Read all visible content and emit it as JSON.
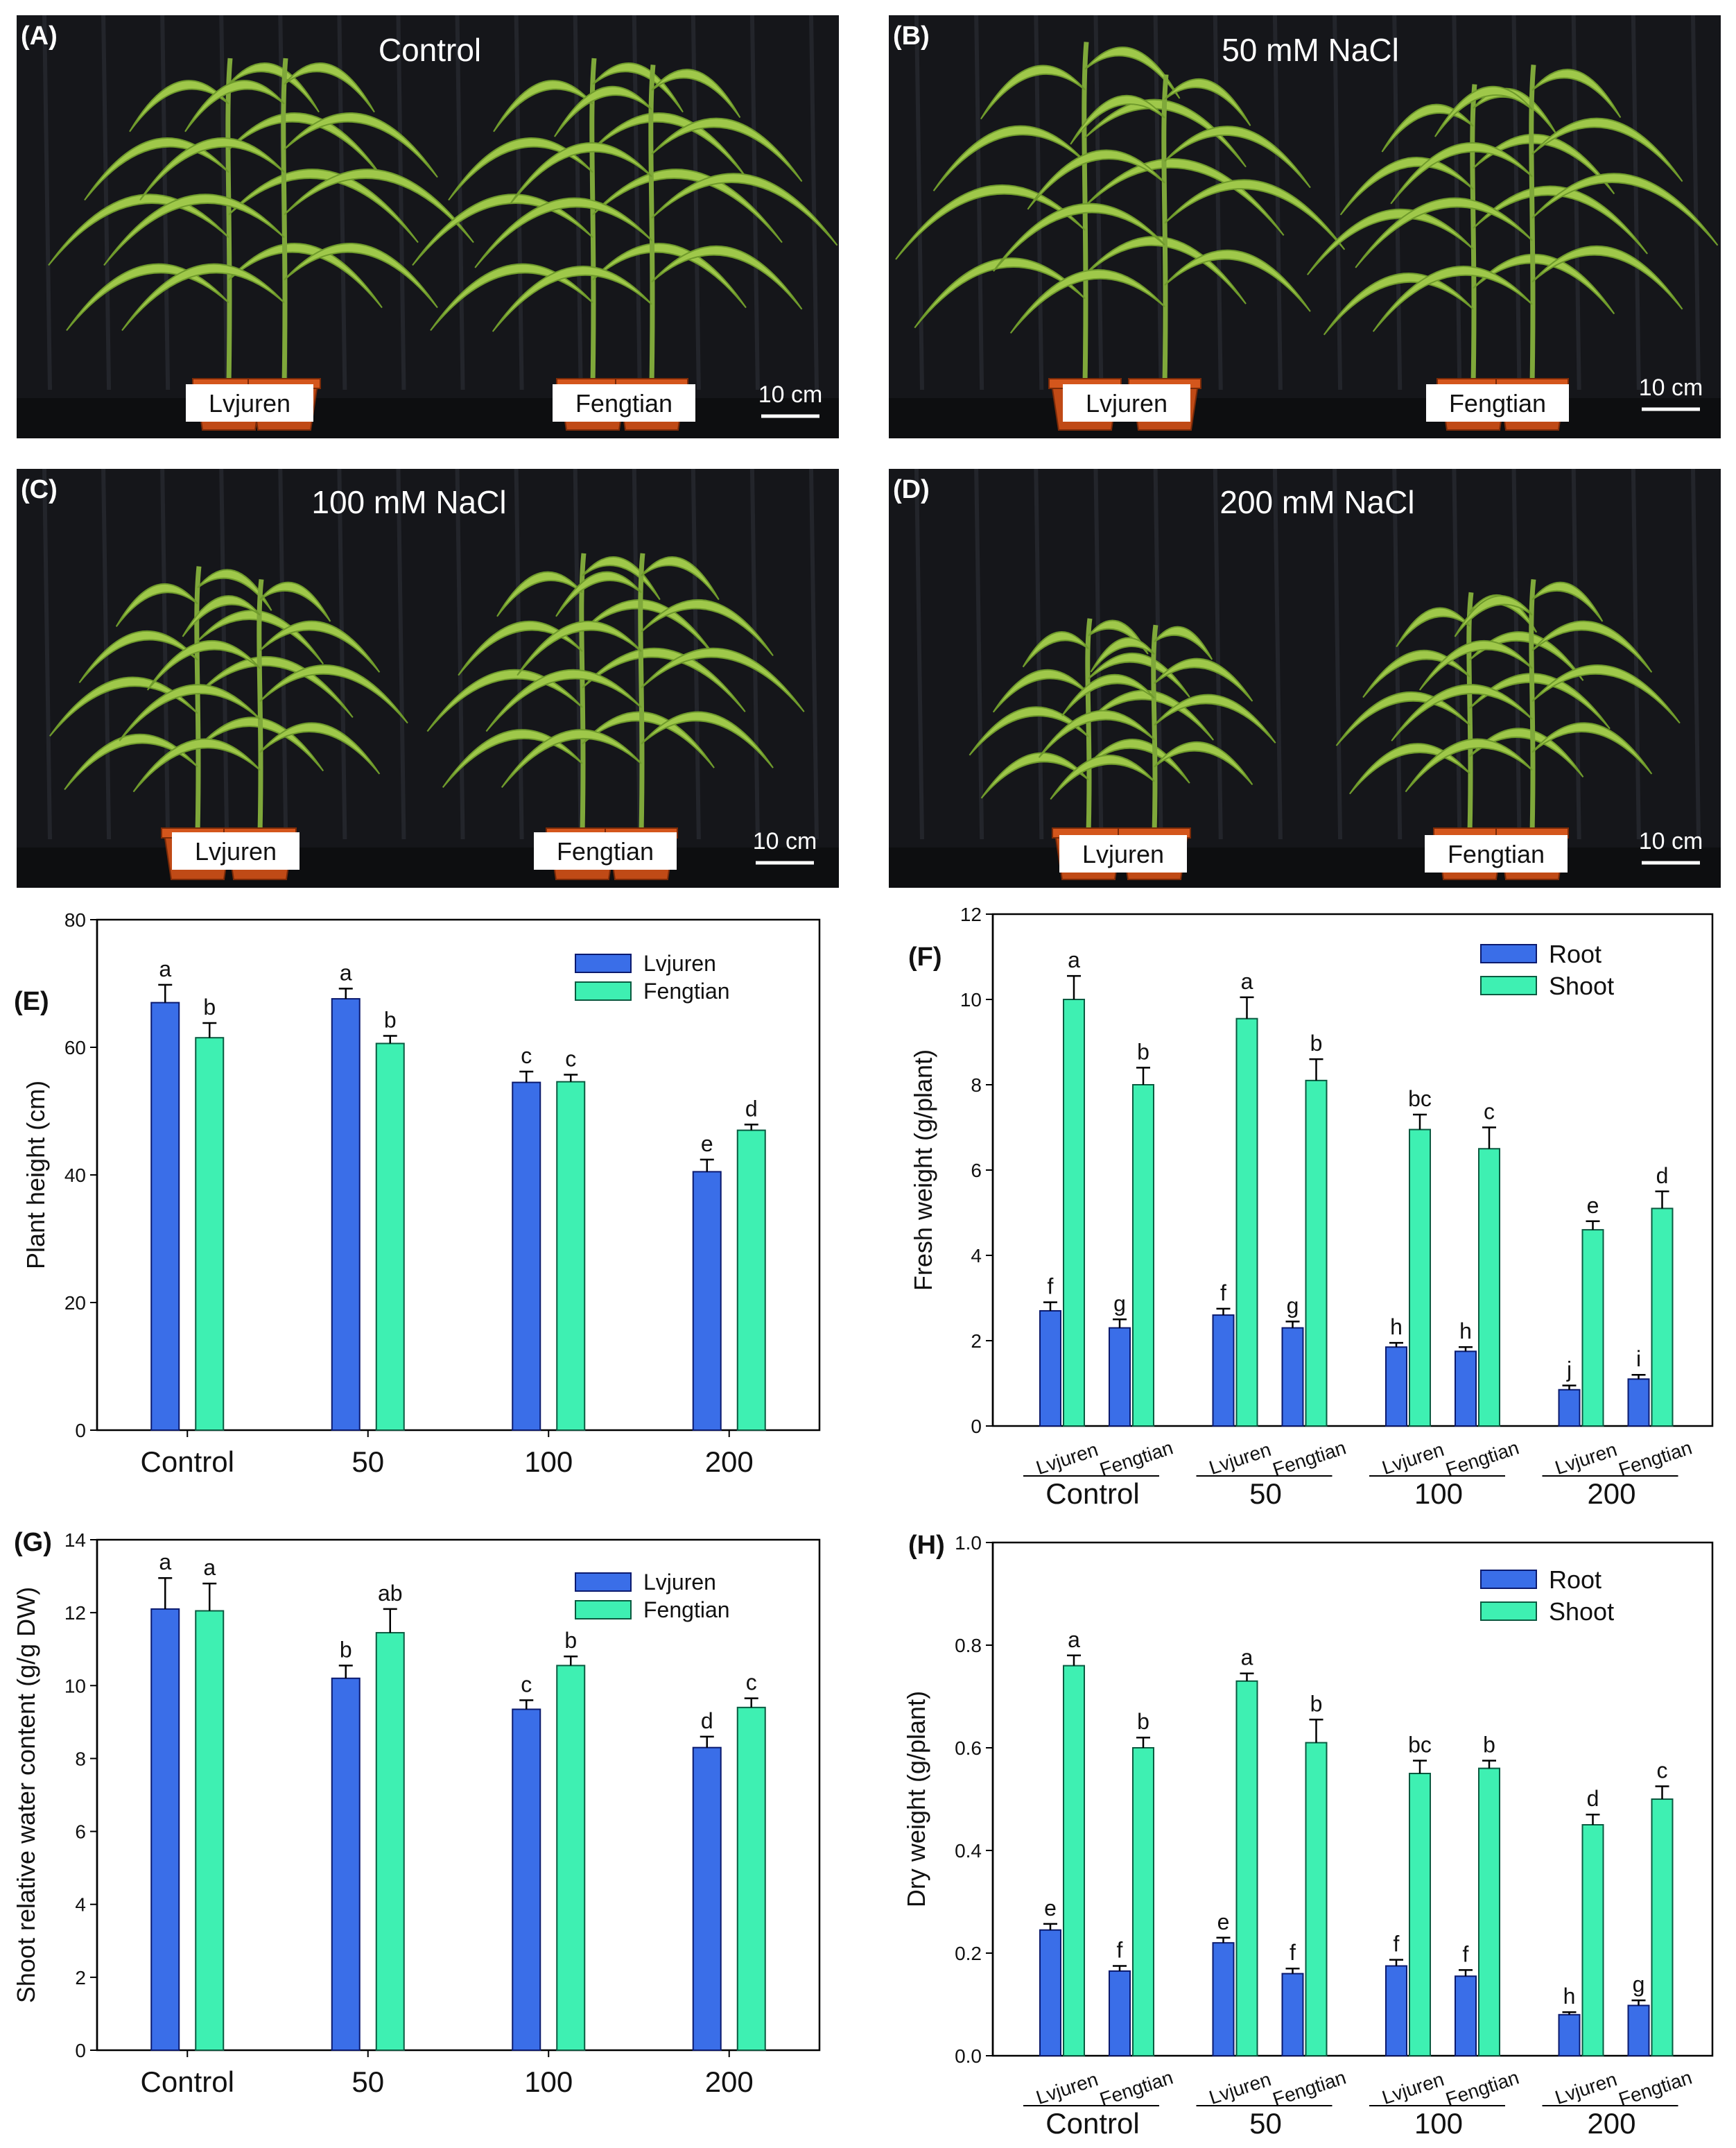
{
  "figure": {
    "photo_panels": [
      {
        "letter": "(A)",
        "title": "Control",
        "labels": [
          "Lvjuren",
          "Fengtian"
        ],
        "scale": "10 cm"
      },
      {
        "letter": "(B)",
        "title": "50 mM NaCl",
        "labels": [
          "Lvjuren",
          "Fengtian"
        ],
        "scale": "10 cm"
      },
      {
        "letter": "(C)",
        "title": "100 mM NaCl",
        "labels": [
          "Lvjuren",
          "Fengtian"
        ],
        "scale": "10 cm"
      },
      {
        "letter": "(D)",
        "title": "200 mM NaCl",
        "labels": [
          "Lvjuren",
          "Fengtian"
        ],
        "scale": "10 cm"
      }
    ]
  },
  "colors": {
    "blue": "#3a6ee8",
    "green": "#3ef0b2",
    "blue_stroke": "#0b1a6e",
    "green_stroke": "#0a5a40"
  },
  "chart_data": [
    {
      "panel": "(E)",
      "type": "bar",
      "categories": [
        "Control",
        "50",
        "100",
        "200"
      ],
      "series": [
        {
          "name": "Lvjuren",
          "values": [
            67,
            67.6,
            54.5,
            40.5
          ],
          "errors": [
            2.8,
            1.6,
            1.7,
            1.9
          ],
          "letters": [
            "a",
            "a",
            "c",
            "e"
          ]
        },
        {
          "name": "Fengtian",
          "values": [
            61.5,
            60.6,
            54.6,
            47
          ],
          "errors": [
            2.3,
            1.2,
            1.1,
            0.9
          ],
          "letters": [
            "b",
            "b",
            "c",
            "d"
          ]
        }
      ],
      "ylabel": "Plant height (cm)",
      "ylim": [
        0,
        80
      ],
      "yticks": [
        0,
        20,
        40,
        60,
        80
      ],
      "legend": "top-right"
    },
    {
      "panel": "(F)",
      "type": "bar",
      "groups": [
        "Control",
        "50",
        "100",
        "200"
      ],
      "cultivars": [
        "Lvjuren",
        "Fengtian"
      ],
      "series": [
        {
          "name": "Root",
          "values": [
            2.7,
            2.3,
            2.6,
            2.3,
            1.85,
            1.75,
            0.85,
            1.1
          ],
          "errors": [
            0.2,
            0.2,
            0.15,
            0.15,
            0.1,
            0.1,
            0.1,
            0.1
          ],
          "letters": [
            "f",
            "g",
            "f",
            "g",
            "h",
            "h",
            "j",
            "i"
          ]
        },
        {
          "name": "Shoot",
          "values": [
            10,
            8,
            9.55,
            8.1,
            6.95,
            6.5,
            4.6,
            5.1
          ],
          "errors": [
            0.55,
            0.4,
            0.5,
            0.5,
            0.35,
            0.5,
            0.2,
            0.4
          ],
          "letters": [
            "a",
            "b",
            "a",
            "b",
            "bc",
            "c",
            "e",
            "d"
          ]
        }
      ],
      "ylabel": "Fresh weight (g/plant)",
      "ylim": [
        0,
        12
      ],
      "yticks": [
        0,
        2,
        4,
        6,
        8,
        10,
        12
      ],
      "legend": "top-right"
    },
    {
      "panel": "(G)",
      "type": "bar",
      "categories": [
        "Control",
        "50",
        "100",
        "200"
      ],
      "series": [
        {
          "name": "Lvjuren",
          "values": [
            12.1,
            10.2,
            9.35,
            8.3
          ],
          "errors": [
            0.85,
            0.35,
            0.25,
            0.3
          ],
          "letters": [
            "a",
            "b",
            "c",
            "d"
          ]
        },
        {
          "name": "Fengtian",
          "values": [
            12.05,
            11.45,
            10.55,
            9.4
          ],
          "errors": [
            0.75,
            0.65,
            0.25,
            0.25
          ],
          "letters": [
            "a",
            "ab",
            "b",
            "c"
          ]
        }
      ],
      "ylabel": "Shoot relative water content (g/g DW)",
      "ylim": [
        0,
        14
      ],
      "yticks": [
        0,
        2,
        4,
        6,
        8,
        10,
        12,
        14
      ],
      "legend": "top-right"
    },
    {
      "panel": "(H)",
      "type": "bar",
      "groups": [
        "Control",
        "50",
        "100",
        "200"
      ],
      "cultivars": [
        "Lvjuren",
        "Fengtian"
      ],
      "series": [
        {
          "name": "Root",
          "values": [
            0.245,
            0.165,
            0.22,
            0.16,
            0.175,
            0.155,
            0.08,
            0.098
          ],
          "errors": [
            0.012,
            0.01,
            0.01,
            0.01,
            0.012,
            0.012,
            0.005,
            0.01
          ],
          "letters": [
            "e",
            "f",
            "e",
            "f",
            "f",
            "f",
            "h",
            "g"
          ]
        },
        {
          "name": "Shoot",
          "values": [
            0.76,
            0.6,
            0.73,
            0.61,
            0.55,
            0.56,
            0.45,
            0.5
          ],
          "errors": [
            0.02,
            0.02,
            0.015,
            0.045,
            0.025,
            0.015,
            0.02,
            0.025
          ],
          "letters": [
            "a",
            "b",
            "a",
            "b",
            "bc",
            "b",
            "d",
            "c"
          ]
        }
      ],
      "ylabel": "Dry weight (g/plant)",
      "ylim": [
        0,
        1.0
      ],
      "yticks": [
        "0.0",
        "0.2",
        "0.4",
        "0.6",
        "0.8",
        "1.0"
      ],
      "legend": "top-right"
    }
  ]
}
